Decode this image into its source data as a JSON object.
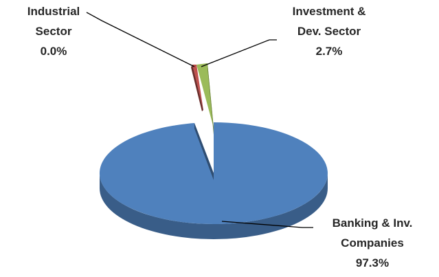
{
  "chart_data": {
    "type": "pie",
    "style": "3d-exploded",
    "slices": [
      {
        "key": "banking",
        "label_lines": [
          "Banking & Inv.",
          "Companies",
          "97.3%"
        ],
        "value": 97.3,
        "color": "#4F81BD"
      },
      {
        "key": "industrial",
        "label_lines": [
          "Industrial",
          "Sector",
          "0.0%"
        ],
        "value": 0.0,
        "color": "#C0504D"
      },
      {
        "key": "investment",
        "label_lines": [
          "Investment &",
          "Dev. Sector",
          "2.7%"
        ],
        "value": 2.7,
        "color": "#9BBB59"
      }
    ]
  }
}
